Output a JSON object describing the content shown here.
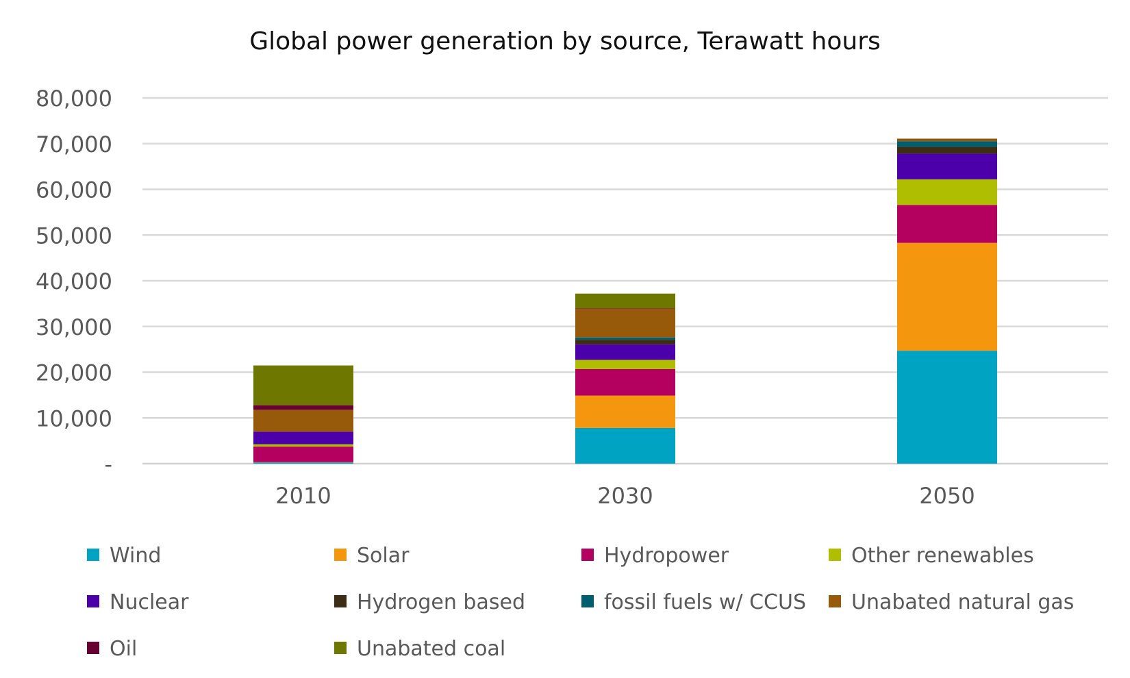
{
  "chart_data": {
    "type": "bar",
    "stacked": true,
    "title": "Global power generation by source, Terawatt hours",
    "xlabel": "",
    "ylabel": "",
    "ylim": [
      0,
      80000
    ],
    "yticks": [
      0,
      10000,
      20000,
      30000,
      40000,
      50000,
      60000,
      70000,
      80000
    ],
    "ytick_labels": [
      "-",
      "10,000",
      "20,000",
      "30,000",
      "40,000",
      "50,000",
      "60,000",
      "70,000",
      "80,000"
    ],
    "grid": true,
    "legend_position": "bottom",
    "categories": [
      "2010",
      "2030",
      "2050"
    ],
    "series": [
      {
        "name": "Wind",
        "color": "#00A3C1",
        "values": [
          300,
          7800,
          24700
        ]
      },
      {
        "name": "Solar",
        "color": "#F5960F",
        "values": [
          30,
          7100,
          23600
        ]
      },
      {
        "name": "Hydropower",
        "color": "#B4005F",
        "values": [
          3400,
          5800,
          8300
        ]
      },
      {
        "name": "Other renewables",
        "color": "#B0BE00",
        "values": [
          500,
          2000,
          5600
        ]
      },
      {
        "name": "Nuclear",
        "color": "#4B00AA",
        "values": [
          2750,
          3400,
          5600
        ]
      },
      {
        "name": "Hydrogen based",
        "color": "#3C2D14",
        "values": [
          0,
          1000,
          1500
        ]
      },
      {
        "name": "fossil fuels w/ CCUS",
        "color": "#005F6E",
        "values": [
          0,
          500,
          1200
        ]
      },
      {
        "name": "Unabated natural gas",
        "color": "#965A0A",
        "values": [
          4800,
          6300,
          500
        ]
      },
      {
        "name": "Oil",
        "color": "#690032",
        "values": [
          1000,
          100,
          50
        ]
      },
      {
        "name": "Unabated coal",
        "color": "#6E7800",
        "values": [
          8700,
          3200,
          50
        ]
      }
    ]
  }
}
